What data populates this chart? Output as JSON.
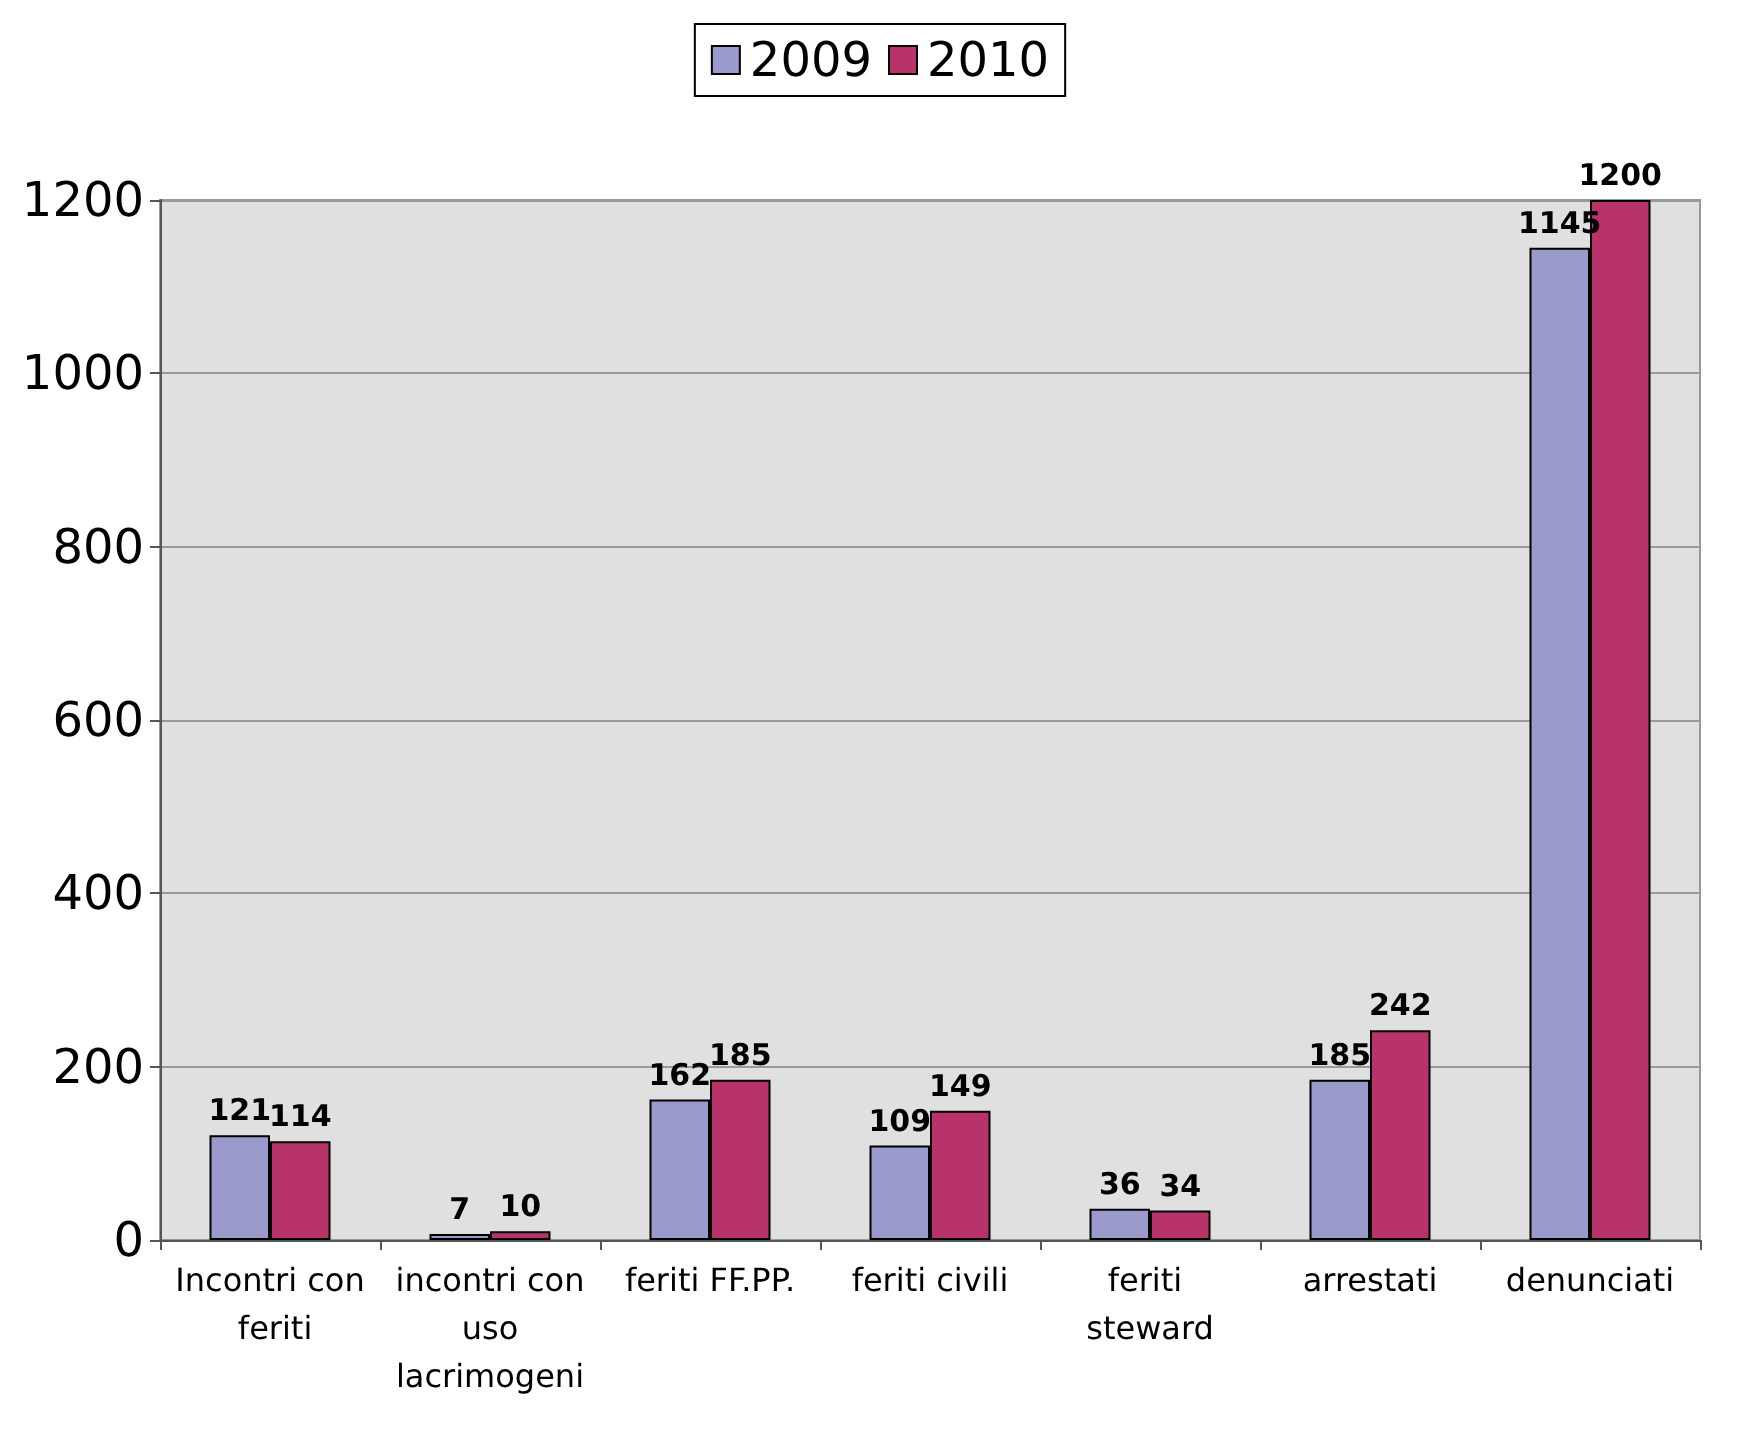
{
  "chart_data": {
    "type": "bar",
    "categories": [
      "Incontri con feriti",
      "incontri con uso lacrimogeni",
      "feriti FF.PP.",
      "feriti civili",
      "feriti steward",
      "arrestati",
      "denunciati"
    ],
    "series": [
      {
        "name": "2009",
        "color": "#9999cc",
        "values": [
          121,
          7,
          162,
          109,
          36,
          185,
          1145
        ]
      },
      {
        "name": "2010",
        "color": "#b8336a",
        "values": [
          114,
          10,
          185,
          149,
          34,
          242,
          1200
        ]
      }
    ],
    "ylim": [
      0,
      1200
    ],
    "yticks": [
      0,
      200,
      400,
      600,
      800,
      1000,
      1200
    ],
    "grid": "y",
    "legend": "top",
    "data_labels": true
  }
}
